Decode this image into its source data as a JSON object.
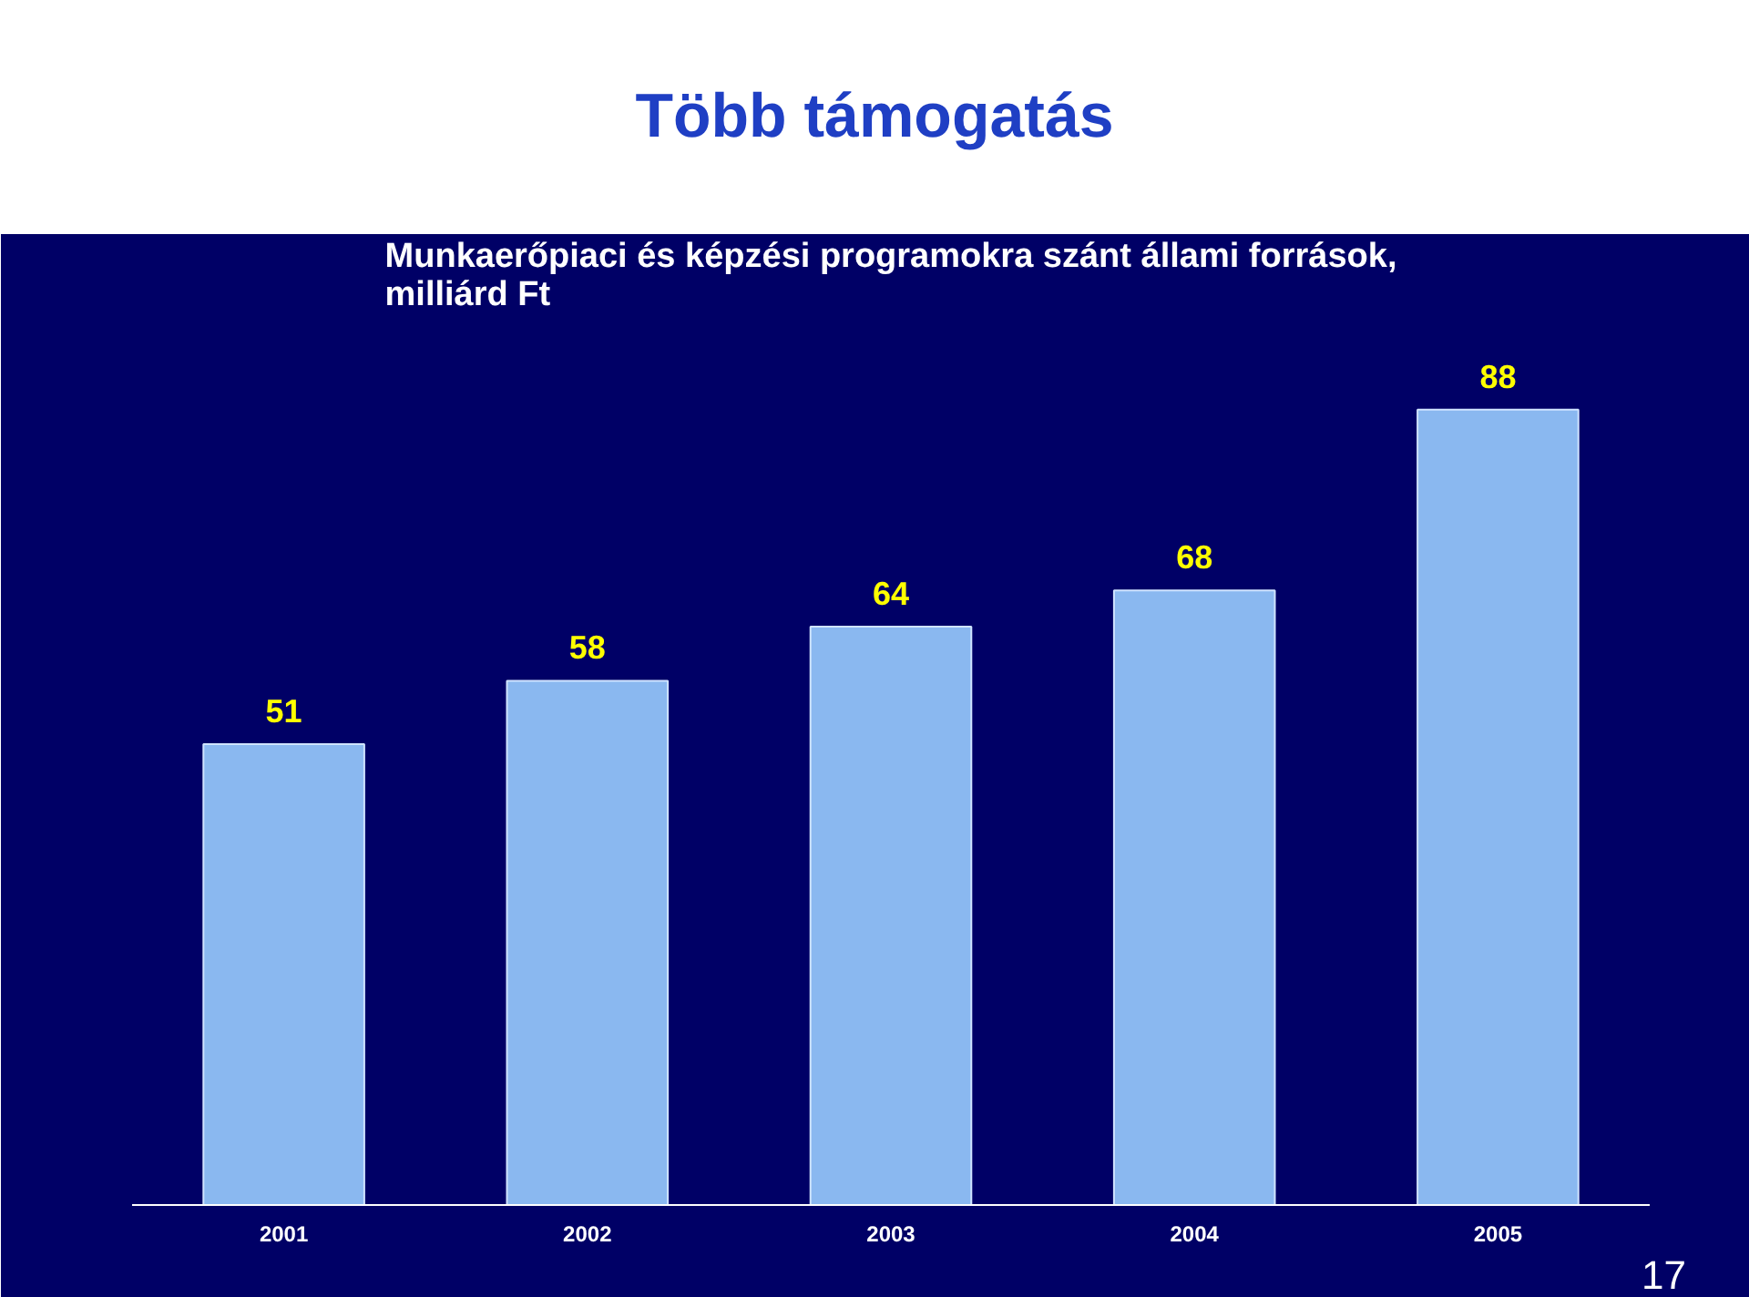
{
  "chart_data": {
    "type": "bar",
    "title": "Több támogatás",
    "subtitle": "Munkaerőpiaci és képzési programokra szánt állami források,\nmilliárd Ft",
    "categories": [
      "2001",
      "2002",
      "2003",
      "2004",
      "2005"
    ],
    "values": [
      51,
      58,
      64,
      68,
      88
    ],
    "color": "#8ab8f0",
    "data_labels": true,
    "grid": false,
    "annotations": [
      "17"
    ]
  }
}
